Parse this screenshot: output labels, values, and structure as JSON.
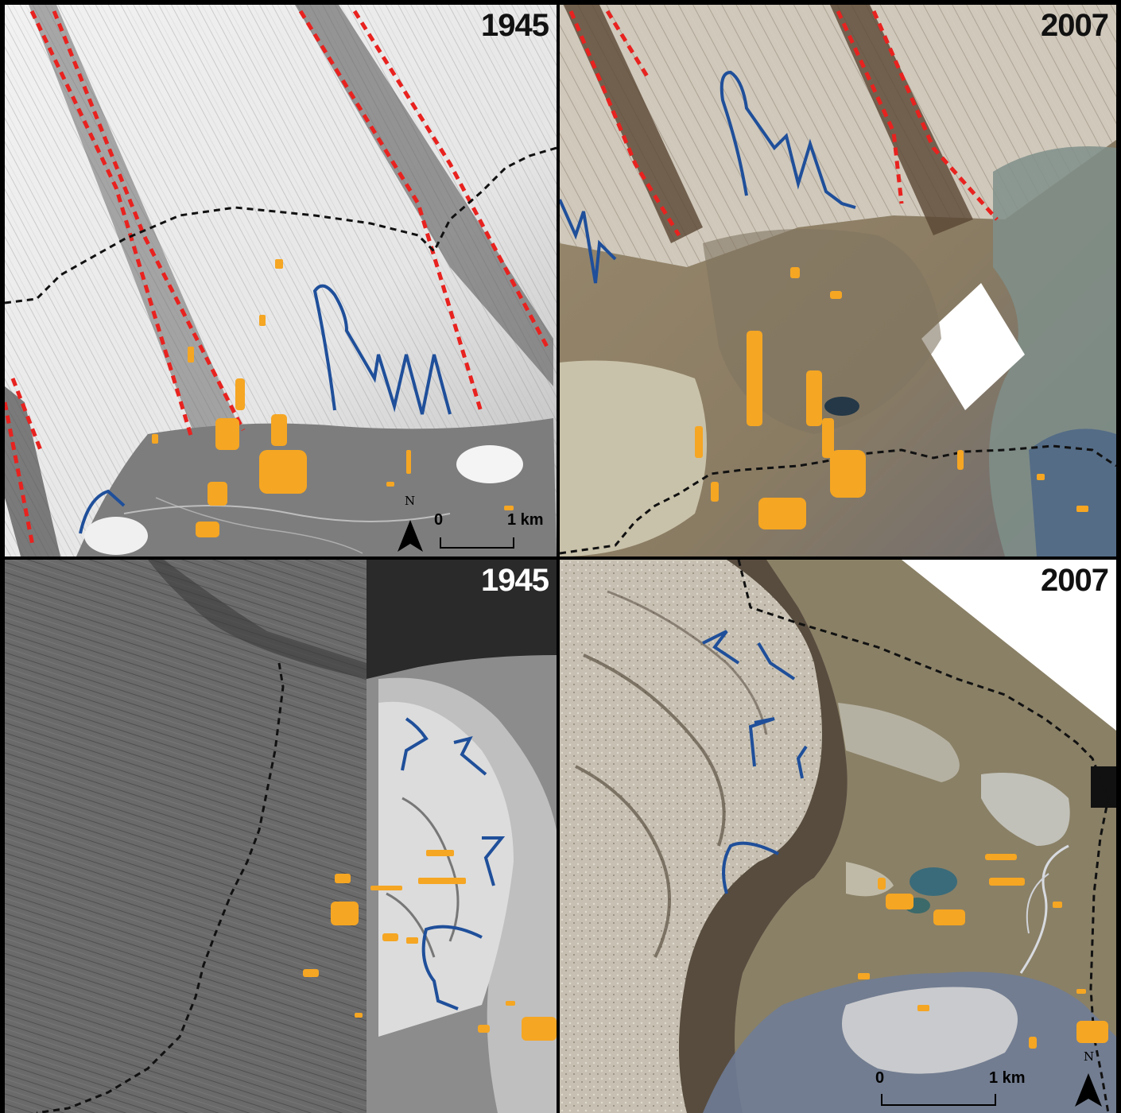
{
  "panels": {
    "top_left": {
      "year": "1945",
      "year_color": "#111111",
      "scale": {
        "zero": "0",
        "distance": "1 km"
      },
      "north": "N"
    },
    "top_right": {
      "year": "2007",
      "year_color": "#111111"
    },
    "bottom_left": {
      "year": "1945",
      "year_color": "#ffffff"
    },
    "bottom_right": {
      "year": "2007",
      "year_color": "#111111",
      "scale": {
        "zero": "0",
        "distance": "1 km"
      },
      "north": "N"
    }
  },
  "colors": {
    "red_outline": "#e8221f",
    "blue_outline": "#1f4f9a",
    "orange_features": "#f5a623",
    "black_dashed": "#111111",
    "panel_border": "#000000"
  }
}
